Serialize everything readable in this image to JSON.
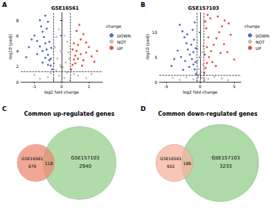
{
  "chart_data": [
    {
      "panel": "A",
      "type": "scatter",
      "title": "GSE16561",
      "x_label": "log2 fold change",
      "y_label": "-log10 (padj)",
      "xlim": [
        -1.5,
        1.5
      ],
      "xticks": [
        -1,
        0,
        1
      ],
      "ylim": [
        0,
        9
      ],
      "yticks": [
        0,
        2,
        4,
        6,
        8
      ],
      "grid": false,
      "legend": "right",
      "legend_title": "change",
      "thresholds": {
        "x": [
          -0.3,
          0.3
        ],
        "y": 1.3
      },
      "series": [
        {
          "name": "DOWN",
          "color": "#3a52b4",
          "values": [
            [
              -0.35,
              1.6
            ],
            [
              -0.4,
              2.1
            ],
            [
              -0.45,
              2.8
            ],
            [
              -0.5,
              3.5
            ],
            [
              -0.55,
              4.2
            ],
            [
              -0.6,
              5.0
            ],
            [
              -0.65,
              5.8
            ],
            [
              -0.7,
              6.5
            ],
            [
              -0.75,
              7.2
            ],
            [
              -0.8,
              8.0
            ],
            [
              -0.4,
              3.0
            ],
            [
              -0.5,
              2.2
            ],
            [
              -0.6,
              3.1
            ],
            [
              -0.7,
              4.0
            ],
            [
              -0.8,
              4.6
            ],
            [
              -0.9,
              5.3
            ],
            [
              -1.0,
              6.0
            ],
            [
              -1.1,
              5.5
            ],
            [
              -0.9,
              3.6
            ],
            [
              -1.2,
              4.5
            ],
            [
              -0.45,
              5.2
            ],
            [
              -0.55,
              6.9
            ],
            [
              -0.6,
              8.6
            ],
            [
              -0.5,
              7.8
            ],
            [
              -1.3,
              3.2
            ],
            [
              -0.38,
              4.4
            ],
            [
              -0.7,
              2.5
            ]
          ]
        },
        {
          "name": "NOT",
          "color": "#b5b5b5",
          "values": [
            [
              0,
              0.1
            ],
            [
              0.1,
              0.5
            ],
            [
              -0.1,
              0.8
            ],
            [
              0.2,
              1.2
            ],
            [
              -0.2,
              1.5
            ],
            [
              0.15,
              2.5
            ],
            [
              -0.15,
              3.0
            ],
            [
              0.25,
              3.8
            ],
            [
              -0.25,
              4.5
            ],
            [
              0.05,
              1.9
            ],
            [
              -0.05,
              2.2
            ],
            [
              0.2,
              5.2
            ],
            [
              -0.2,
              5.8
            ],
            [
              0.1,
              6.0
            ],
            [
              -0.5,
              0.6
            ],
            [
              0.6,
              0.8
            ],
            [
              -0.8,
              0.4
            ],
            [
              0.9,
              0.5
            ],
            [
              -1.0,
              0.9
            ],
            [
              1.1,
              1.0
            ],
            [
              0.3,
              0.2
            ],
            [
              -0.3,
              0.3
            ],
            [
              -0.4,
              1.1
            ],
            [
              0.45,
              1.0
            ],
            [
              0,
              4.0
            ],
            [
              -0.1,
              6.8
            ],
            [
              0.28,
              3.0
            ],
            [
              -0.28,
              2.4
            ]
          ]
        },
        {
          "name": "UP",
          "color": "#e0301e",
          "values": [
            [
              0.35,
              1.6
            ],
            [
              0.4,
              2.2
            ],
            [
              0.45,
              2.9
            ],
            [
              0.5,
              3.4
            ],
            [
              0.55,
              4.0
            ],
            [
              0.6,
              4.8
            ],
            [
              0.7,
              5.5
            ],
            [
              0.8,
              6.2
            ],
            [
              0.9,
              3.8
            ],
            [
              1.0,
              4.5
            ],
            [
              0.5,
              2.4
            ],
            [
              0.6,
              3.0
            ],
            [
              0.7,
              3.6
            ],
            [
              0.8,
              2.8
            ],
            [
              1.1,
              3.3
            ],
            [
              1.2,
              2.6
            ],
            [
              0.45,
              5.0
            ],
            [
              0.55,
              6.6
            ],
            [
              0.65,
              7.4
            ],
            [
              0.4,
              4.2
            ],
            [
              1.3,
              4.0
            ],
            [
              0.75,
              2.1
            ],
            [
              0.9,
              5.1
            ]
          ]
        }
      ]
    },
    {
      "panel": "B",
      "type": "scatter",
      "title": "GSE157103",
      "x_label": "log2 fold change",
      "y_label": "-log10 (padj)",
      "xlim": [
        -6,
        6
      ],
      "xticks": [
        -5,
        0,
        5
      ],
      "ylim": [
        0,
        14
      ],
      "yticks": [
        0,
        5,
        10
      ],
      "grid": false,
      "legend": "right",
      "legend_title": "change",
      "thresholds": {
        "x": [
          -0.5,
          0.5
        ],
        "y": 1.3
      },
      "series": [
        {
          "name": "DOWN",
          "color": "#3a52b4",
          "values": [
            [
              -0.6,
              1.6
            ],
            [
              -0.8,
              2.5
            ],
            [
              -1.0,
              3.5
            ],
            [
              -1.2,
              4.6
            ],
            [
              -1.5,
              5.5
            ],
            [
              -1.8,
              6.5
            ],
            [
              -2.0,
              7.8
            ],
            [
              -2.3,
              9.0
            ],
            [
              -2.6,
              10.2
            ],
            [
              -3.0,
              11.5
            ],
            [
              -1.0,
              6.0
            ],
            [
              -1.3,
              7.5
            ],
            [
              -0.7,
              4.0
            ],
            [
              -0.9,
              8.5
            ],
            [
              -1.6,
              3.0
            ],
            [
              -2.2,
              4.2
            ],
            [
              -2.8,
              5.0
            ],
            [
              -3.3,
              6.3
            ],
            [
              -3.8,
              4.6
            ],
            [
              -1.1,
              10.5
            ],
            [
              -0.8,
              12.0
            ],
            [
              -4.2,
              3.2
            ],
            [
              -2.5,
              2.4
            ],
            [
              -1.9,
              9.6
            ],
            [
              -0.65,
              6.8
            ]
          ]
        },
        {
          "name": "NOT",
          "color": "#b5b5b5",
          "values": [
            [
              0,
              0.2
            ],
            [
              0.3,
              0.8
            ],
            [
              -0.3,
              1.0
            ],
            [
              0.2,
              2.0
            ],
            [
              -0.2,
              2.6
            ],
            [
              0.4,
              3.5
            ],
            [
              -0.4,
              4.2
            ],
            [
              0.1,
              5.0
            ],
            [
              -0.1,
              1.5
            ],
            [
              0.35,
              6.0
            ],
            [
              -0.35,
              6.6
            ],
            [
              -1.0,
              0.5
            ],
            [
              1.2,
              0.6
            ],
            [
              -2.0,
              0.9
            ],
            [
              2.1,
              1.0
            ],
            [
              -3.0,
              0.4
            ],
            [
              3.2,
              0.7
            ],
            [
              0.45,
              7.2
            ],
            [
              -0.45,
              0.3
            ],
            [
              0.6,
              0.4
            ],
            [
              -4.0,
              0.8
            ],
            [
              4.1,
              0.3
            ]
          ]
        },
        {
          "name": "UP",
          "color": "#e0301e",
          "values": [
            [
              0.6,
              1.8
            ],
            [
              0.8,
              2.8
            ],
            [
              1.0,
              3.8
            ],
            [
              1.3,
              5.0
            ],
            [
              1.6,
              6.2
            ],
            [
              2.0,
              7.5
            ],
            [
              2.4,
              8.8
            ],
            [
              2.8,
              10.0
            ],
            [
              3.2,
              11.2
            ],
            [
              3.6,
              12.4
            ],
            [
              1.0,
              7.0
            ],
            [
              1.2,
              9.0
            ],
            [
              0.7,
              5.5
            ],
            [
              0.9,
              10.8
            ],
            [
              1.8,
              4.0
            ],
            [
              2.3,
              3.2
            ],
            [
              3.0,
              5.8
            ],
            [
              3.5,
              7.6
            ],
            [
              4.0,
              6.0
            ],
            [
              4.5,
              9.5
            ],
            [
              1.5,
              12.8
            ],
            [
              5.0,
              4.5
            ],
            [
              2.6,
              13.2
            ],
            [
              1.1,
              13.5
            ],
            [
              4.2,
              11.8
            ],
            [
              0.75,
              12.2
            ]
          ]
        }
      ]
    },
    {
      "panel": "C",
      "type": "venn",
      "title": "Common up-regulated genes",
      "sets": [
        {
          "name": "GSE16561",
          "count": 676,
          "color": "#ee8a72"
        },
        {
          "name": "GSE157103",
          "count": 2940,
          "color": "#a9d8a0"
        }
      ],
      "overlap": 118
    },
    {
      "panel": "D",
      "type": "venn",
      "title": "Common down-regulated genes",
      "sets": [
        {
          "name": "GSE16561",
          "count": 602,
          "color": "#f6b39f"
        },
        {
          "name": "GSE157103",
          "count": 3233,
          "color": "#a4d69c"
        }
      ],
      "overlap": 186
    }
  ]
}
